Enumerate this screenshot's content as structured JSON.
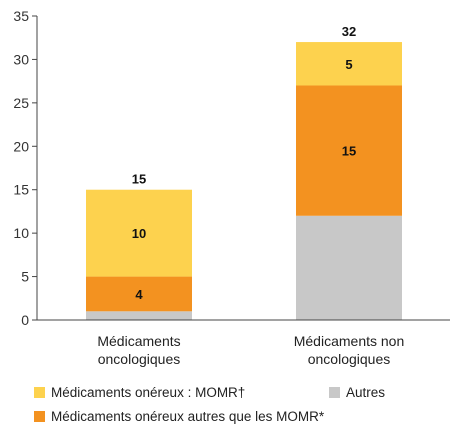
{
  "chart_data": {
    "type": "bar",
    "stacked": true,
    "categories": [
      "Médicaments oncologiques",
      "Médicaments non oncologiques"
    ],
    "category_label_lines": [
      [
        "Médicaments",
        "oncologiques"
      ],
      [
        "Médicaments non",
        "oncologiques"
      ]
    ],
    "series": [
      {
        "name": "Autres",
        "values": [
          1,
          12
        ],
        "color": "#c8c8c8",
        "labels": [
          "",
          ""
        ]
      },
      {
        "name": "Médicaments onéreux autres que les MOMR*",
        "values": [
          4,
          15
        ],
        "color": "#f39220",
        "labels": [
          "4",
          "15"
        ]
      },
      {
        "name": "Médicaments onéreux : MOMR†",
        "values": [
          10,
          5
        ],
        "color": "#fdd24e",
        "labels": [
          "10",
          "5"
        ]
      }
    ],
    "totals": [
      "15",
      "32"
    ],
    "ylim": [
      0,
      35
    ],
    "yticks": [
      0,
      5,
      10,
      15,
      20,
      25,
      30,
      35
    ],
    "grid": false,
    "legend_position": "bottom"
  },
  "legend": {
    "momr": "Médicaments onéreux : MOMR†",
    "autres": "Autres",
    "autres_que_momr": "Médicaments onéreux autres que les MOMR*"
  }
}
